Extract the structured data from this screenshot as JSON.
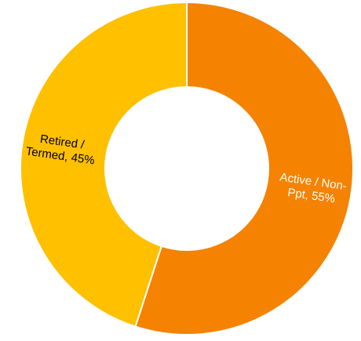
{
  "chart_data": {
    "type": "pie",
    "subtype": "donut",
    "title": "",
    "categories": [
      "Active / Non-Ppt",
      "Retired / Termed"
    ],
    "values": [
      55,
      45
    ],
    "unit": "%",
    "labels": [
      {
        "category": "Active / Non-Ppt",
        "lines": [
          "Active / Non-",
          "Ppt, 55%"
        ],
        "color": "#ffffff"
      },
      {
        "category": "Retired / Termed",
        "lines": [
          "Retired /",
          "Termed, 45%"
        ],
        "color": "#000000"
      }
    ],
    "colors": [
      "#F58200",
      "#FFC000"
    ],
    "legend": "none"
  }
}
